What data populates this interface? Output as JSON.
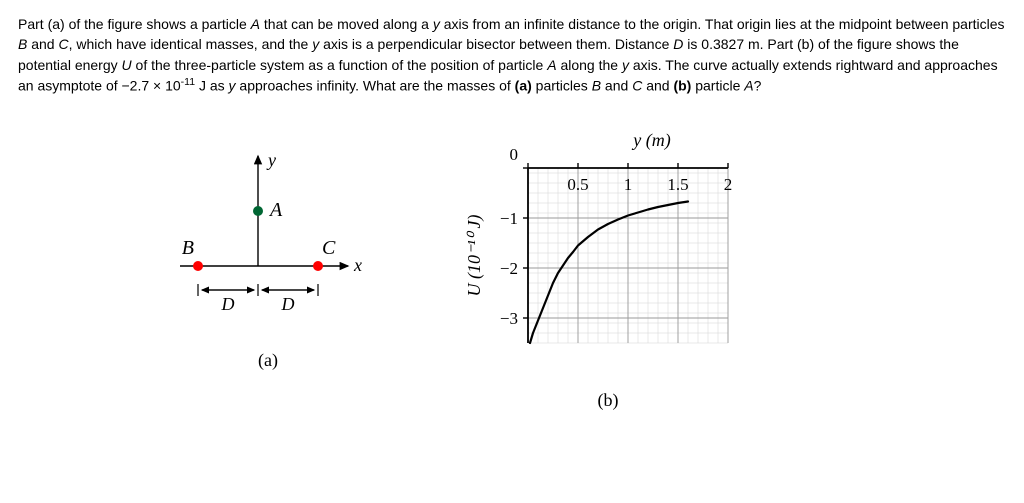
{
  "problem": {
    "html": "Part (a) of the figure shows a particle <span class=\"italic\">A</span> that can be moved along a <span class=\"italic\">y</span> axis from an infinite distance to the origin. That origin lies at the midpoint between particles <span class=\"italic\">B</span> and <span class=\"italic\">C</span>, which have identical masses, and the <span class=\"italic\">y</span> axis is a perpendicular bisector between them. Distance <span class=\"italic\">D</span> is 0.3827 m. Part (b) of the figure shows the potential energy <span class=\"italic\">U</span> of the three-particle system as a function of the position of particle <span class=\"italic\">A</span> along the <span class=\"italic\">y</span> axis. The curve actually extends rightward and approaches an asymptote of &minus;2.7 &times; 10<sup>-11</sup> J as <span class=\"italic\">y</span> approaches infinity. What are the masses of <span class=\"bold\">(a)</span> particles <span class=\"italic\">B</span> and <span class=\"italic\">C</span> and <span class=\"bold\">(b)</span> particle <span class=\"italic\">A</span>?"
  },
  "figA": {
    "labels": {
      "y": "y",
      "x": "x",
      "A": "A",
      "B": "B",
      "C": "C",
      "D": "D"
    },
    "caption": "(a)",
    "colors": {
      "axis": "#000000",
      "particleA": "#006633",
      "particleBC": "#ff0000",
      "text": "#000000"
    }
  },
  "figB": {
    "title_x": "y (m)",
    "ylabel": "U (10⁻¹⁰ J)",
    "caption": "(b)",
    "xlim": [
      0,
      2
    ],
    "ylim": [
      -3.5,
      0
    ],
    "xticks": [
      0,
      0.5,
      1,
      1.5,
      2
    ],
    "xtick_labels": [
      "0",
      "0.5",
      "1",
      "1.5",
      "2"
    ],
    "yticks": [
      0,
      -1,
      -2,
      -3
    ],
    "ytick_labels": [
      "0",
      "−1",
      "−2",
      "−3"
    ],
    "minor_x_step": 0.1,
    "minor_y_step": 0.2,
    "curve_points": [
      [
        0.02,
        -3.5
      ],
      [
        0.05,
        -3.3
      ],
      [
        0.1,
        -3.05
      ],
      [
        0.15,
        -2.8
      ],
      [
        0.2,
        -2.55
      ],
      [
        0.25,
        -2.3
      ],
      [
        0.3,
        -2.1
      ],
      [
        0.35,
        -1.95
      ],
      [
        0.4,
        -1.8
      ],
      [
        0.45,
        -1.68
      ],
      [
        0.5,
        -1.55
      ],
      [
        0.6,
        -1.38
      ],
      [
        0.7,
        -1.23
      ],
      [
        0.8,
        -1.12
      ],
      [
        0.9,
        -1.03
      ],
      [
        1.0,
        -0.95
      ],
      [
        1.1,
        -0.89
      ],
      [
        1.2,
        -0.83
      ],
      [
        1.3,
        -0.78
      ],
      [
        1.4,
        -0.74
      ],
      [
        1.5,
        -0.7
      ],
      [
        1.6,
        -0.67
      ]
    ],
    "colors": {
      "axis": "#000000",
      "major_grid": "#9a9a9a",
      "minor_grid": "#d4d4d4",
      "curve": "#000000",
      "text": "#000000"
    },
    "line_width": 2.2,
    "fontsize_labels": 18,
    "fontsize_ticks": 17
  }
}
